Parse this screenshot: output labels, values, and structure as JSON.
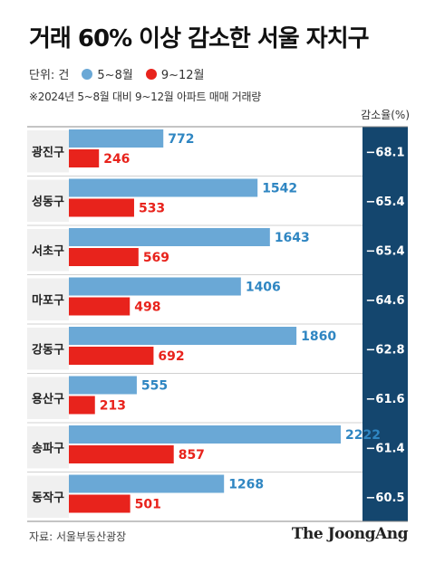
{
  "title": "거래 60% 이상 감소한 서울 자치구",
  "legend": {
    "unit_label": "단위: 건",
    "series_a": "5~8월",
    "series_b": "9~12월"
  },
  "note": "※2024년 5~8월 대비 9~12월 아파트 매매 거래량",
  "rate_header": "감소율(%)",
  "source": "자료: 서울부동산광장",
  "brand": "The JoongAng",
  "colors": {
    "series_a": "#6aa8d6",
    "series_b": "#e8231c",
    "label_a": "#2f86c2",
    "label_b": "#e8231c",
    "district_bg": "#f0f0f0",
    "rate_bg": "#14466e",
    "rate_text": "#ffffff"
  },
  "chart_data": {
    "type": "bar",
    "orientation": "horizontal",
    "categories": [
      "광진구",
      "성동구",
      "서초구",
      "마포구",
      "강동구",
      "용산구",
      "송파구",
      "동작구"
    ],
    "series": [
      {
        "name": "5~8월",
        "values": [
          772,
          1542,
          1643,
          1406,
          1860,
          555,
          2222,
          1268
        ]
      },
      {
        "name": "9~12월",
        "values": [
          246,
          533,
          569,
          498,
          692,
          213,
          857,
          501
        ]
      }
    ],
    "rates": [
      "−68.1",
      "−65.4",
      "−65.4",
      "−64.6",
      "−62.8",
      "−61.6",
      "−61.4",
      "−60.5"
    ],
    "xlim": [
      0,
      2222
    ]
  }
}
